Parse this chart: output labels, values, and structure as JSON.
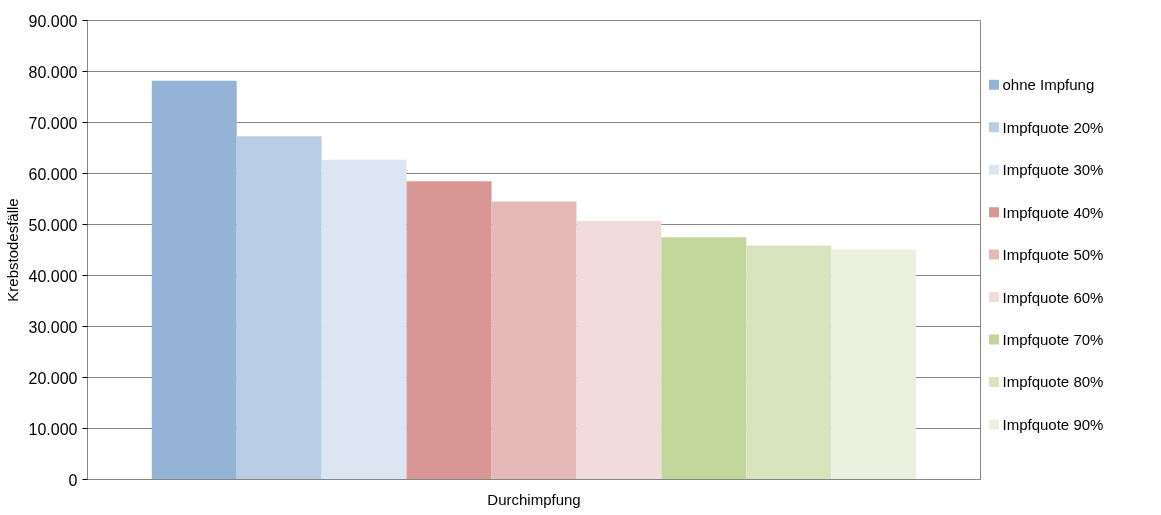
{
  "chart_data": {
    "type": "bar",
    "xlabel": "Durchimpfung",
    "ylabel": "Krebstodesfälle",
    "categories": [
      null
    ],
    "series": [
      {
        "name": "ohne Impfung",
        "color": "#95b3d7",
        "values": [
          78200
        ]
      },
      {
        "name": "Impfquote 20%",
        "color": "#b9cde5",
        "values": [
          67300
        ]
      },
      {
        "name": "Impfquote 30%",
        "color": "#dce6f2",
        "values": [
          62700
        ]
      },
      {
        "name": "Impfquote 40%",
        "color": "#d99694",
        "values": [
          58500
        ]
      },
      {
        "name": "Impfquote 50%",
        "color": "#e6b9b8",
        "values": [
          54500
        ]
      },
      {
        "name": "Impfquote 60%",
        "color": "#f2dcdb",
        "values": [
          50700
        ]
      },
      {
        "name": "Impfquote 70%",
        "color": "#c3d69b",
        "values": [
          47500
        ]
      },
      {
        "name": "Impfquote 80%",
        "color": "#d7e4bd",
        "values": [
          45900
        ]
      },
      {
        "name": "Impfquote 90%",
        "color": "#ebf1de",
        "values": [
          45100
        ]
      }
    ],
    "ylim": [
      0,
      90000
    ],
    "yticks": [
      {
        "value": 0,
        "label": "0"
      },
      {
        "value": 10000,
        "label": "10.000"
      },
      {
        "value": 20000,
        "label": "20.000"
      },
      {
        "value": 30000,
        "label": "30.000"
      },
      {
        "value": 40000,
        "label": "40.000"
      },
      {
        "value": 50000,
        "label": "50.000"
      },
      {
        "value": 60000,
        "label": "60.000"
      },
      {
        "value": 70000,
        "label": "70.000"
      },
      {
        "value": 80000,
        "label": "80.000"
      },
      {
        "value": 90000,
        "label": "90.000"
      }
    ],
    "grid": "y",
    "legend": "right"
  }
}
